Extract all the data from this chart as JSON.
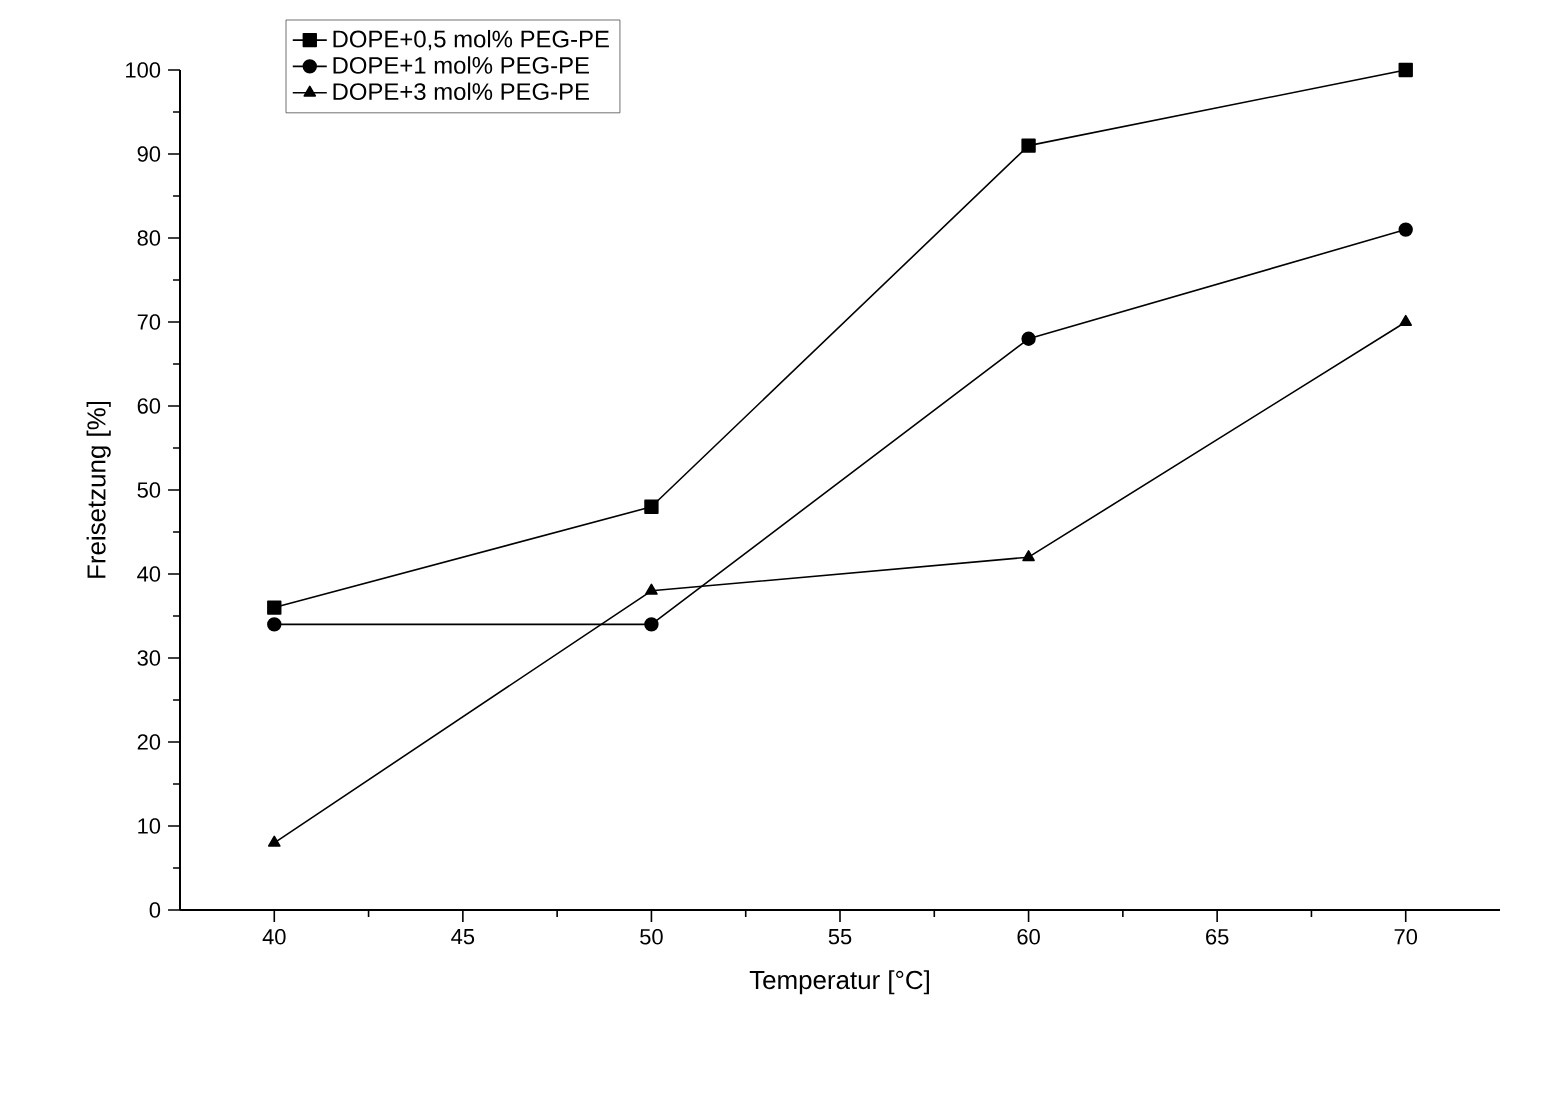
{
  "chart_data": {
    "type": "line",
    "xlabel": "Temperatur [°C]",
    "ylabel": "Freisetzung [%]",
    "x": [
      40,
      50,
      60,
      70
    ],
    "series": [
      {
        "name": "DOPE+0,5 mol% PEG-PE",
        "color": "#000000",
        "marker": "square",
        "values": [
          36,
          48,
          91,
          100
        ]
      },
      {
        "name": "DOPE+1 mol% PEG-PE",
        "color": "#000000",
        "marker": "circle",
        "values": [
          34,
          34,
          68,
          81
        ]
      },
      {
        "name": "DOPE+3 mol% PEG-PE",
        "color": "#000000",
        "marker": "triangle",
        "values": [
          8,
          38,
          42,
          70
        ]
      }
    ],
    "xlim": [
      37.5,
      72.5
    ],
    "ylim": [
      0,
      100
    ],
    "xticks": [
      40,
      45,
      50,
      55,
      60,
      65,
      70
    ],
    "yticks": [
      0,
      10,
      20,
      30,
      40,
      50,
      60,
      70,
      80,
      90,
      100
    ],
    "grid": false,
    "legend": "top left",
    "line_style": "solid"
  }
}
